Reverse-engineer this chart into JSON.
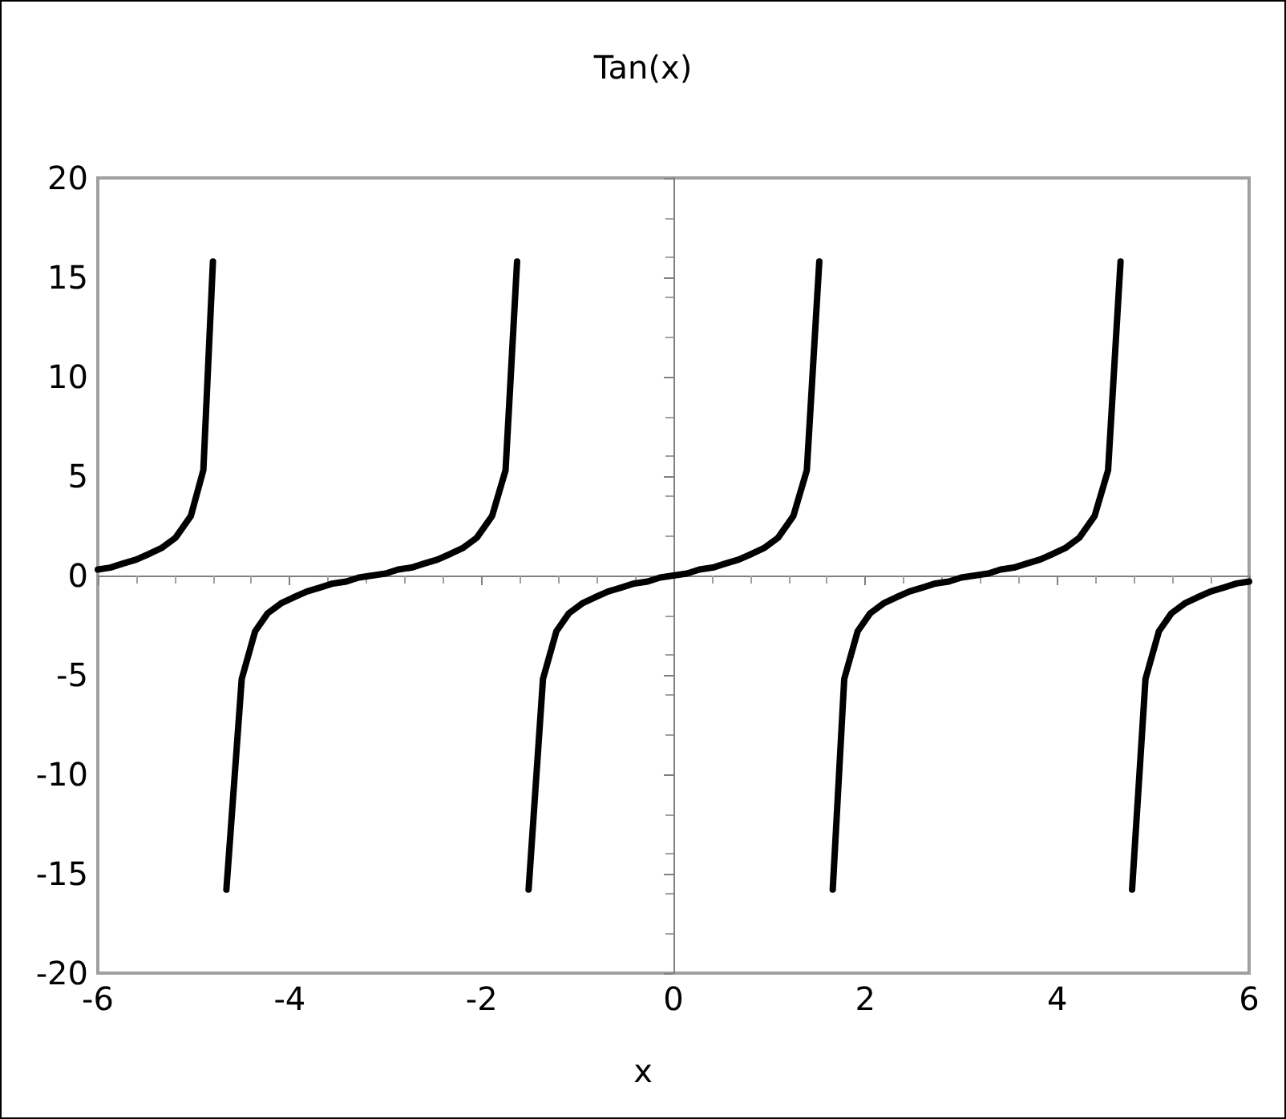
{
  "chart_data": {
    "type": "line",
    "title": "Tan(x)",
    "xlabel": "x",
    "xlim": [
      -6,
      6
    ],
    "xticks": [
      -6,
      -4,
      -2,
      0,
      2,
      4,
      6
    ],
    "ylim": [
      -20,
      20
    ],
    "yticks": [
      -20,
      -15,
      -10,
      -5,
      0,
      5,
      10,
      15,
      20
    ],
    "marker": "none",
    "line_style": "solid",
    "series": [
      {
        "color": "#000000",
        "x": [
          -6.0,
          -5.87,
          -5.74,
          -5.6,
          -5.46,
          -5.33,
          -5.19,
          -5.03,
          -4.9,
          -4.8,
          -4.73,
          -4.66,
          -4.5,
          -4.36,
          -4.23,
          -4.09,
          -3.96,
          -3.82,
          -3.68,
          -3.55,
          -3.41,
          -3.28,
          -3.14,
          -3.0,
          -2.87,
          -2.73,
          -2.6,
          -2.46,
          -2.32,
          -2.19,
          -2.05,
          -1.89,
          -1.75,
          -1.63,
          -1.57,
          -1.51,
          -1.36,
          -1.22,
          -1.09,
          -0.95,
          -0.82,
          -0.68,
          -0.54,
          -0.41,
          -0.27,
          -0.14,
          0,
          0.14,
          0.27,
          0.41,
          0.54,
          0.68,
          0.82,
          0.95,
          1.09,
          1.25,
          1.39,
          1.52,
          1.59,
          1.66,
          1.78,
          1.92,
          2.05,
          2.19,
          2.32,
          2.46,
          2.6,
          2.73,
          2.87,
          3.0,
          3.14,
          3.28,
          3.41,
          3.55,
          3.68,
          3.82,
          3.96,
          4.09,
          4.23,
          4.39,
          4.53,
          4.66,
          4.72,
          4.78,
          4.92,
          5.06,
          5.19,
          5.33,
          5.46,
          5.6,
          5.74,
          5.87,
          6.0
        ],
        "values": [
          0.3,
          0.4,
          0.6,
          0.8,
          1.1,
          1.4,
          1.9,
          3.0,
          5.3,
          15.8,
          null,
          -15.8,
          -5.2,
          -2.8,
          -1.9,
          -1.4,
          -1.1,
          -0.8,
          -0.6,
          -0.4,
          -0.3,
          -0.1,
          0,
          0.1,
          0.3,
          0.4,
          0.6,
          0.8,
          1.1,
          1.4,
          1.9,
          3.0,
          5.3,
          15.8,
          null,
          -15.8,
          -5.2,
          -2.8,
          -1.9,
          -1.4,
          -1.1,
          -0.8,
          -0.6,
          -0.4,
          -0.3,
          -0.1,
          0,
          0.1,
          0.3,
          0.4,
          0.6,
          0.8,
          1.1,
          1.4,
          1.9,
          3.0,
          5.3,
          15.8,
          null,
          -15.8,
          -5.2,
          -2.8,
          -1.9,
          -1.4,
          -1.1,
          -0.8,
          -0.6,
          -0.4,
          -0.3,
          -0.1,
          0,
          0.1,
          0.3,
          0.4,
          0.6,
          0.8,
          1.1,
          1.4,
          1.9,
          3.0,
          5.3,
          15.8,
          null,
          -15.8,
          -5.2,
          -2.8,
          -1.9,
          -1.4,
          -1.1,
          -0.8,
          -0.6,
          -0.4,
          -0.3
        ]
      }
    ]
  }
}
